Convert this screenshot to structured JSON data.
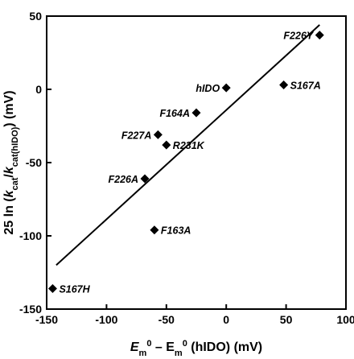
{
  "chart_data": {
    "type": "scatter",
    "title": "",
    "xlabel": {
      "main": "E",
      "sub1": "m",
      "sup1": "0",
      "mid": " – E",
      "sub2": "m",
      "sup2": "0",
      "tail": " (hIDO) (mV)"
    },
    "ylabel": {
      "pre": "25 ln (",
      "k1": "k",
      "k1sub": "cat",
      "slash": "/",
      "k2": "k",
      "k2sub": "cat(hIDO)",
      "tail": ") (mV)"
    },
    "xlim": [
      -150,
      100
    ],
    "ylim": [
      -150,
      50
    ],
    "xticks": [
      -150,
      -100,
      -50,
      0,
      50,
      100
    ],
    "yticks": [
      -150,
      -100,
      -50,
      0,
      50
    ],
    "grid": false,
    "marker": "diamond",
    "points": [
      {
        "label": "F226Y",
        "x": 78,
        "y": 37
      },
      {
        "label": "hIDO",
        "x": 0,
        "y": 1
      },
      {
        "label": "S167A",
        "x": 48,
        "y": 3
      },
      {
        "label": "F164A",
        "x": -25,
        "y": -16
      },
      {
        "label": "F227A",
        "x": -57,
        "y": -31
      },
      {
        "label": "R231K",
        "x": -50,
        "y": -38
      },
      {
        "label": "F226A",
        "x": -68,
        "y": -61
      },
      {
        "label": "F163A",
        "x": -60,
        "y": -96
      },
      {
        "label": "S167H",
        "x": -145,
        "y": -136
      }
    ],
    "fit_line": {
      "x": [
        -142,
        78
      ],
      "y": [
        -120,
        44
      ]
    }
  }
}
